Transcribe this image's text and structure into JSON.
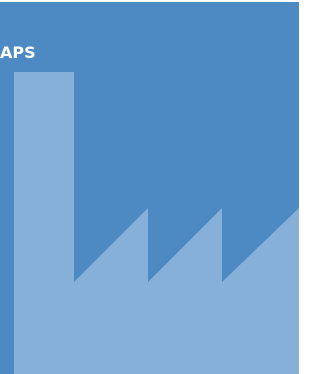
{
  "label": "APS"
}
